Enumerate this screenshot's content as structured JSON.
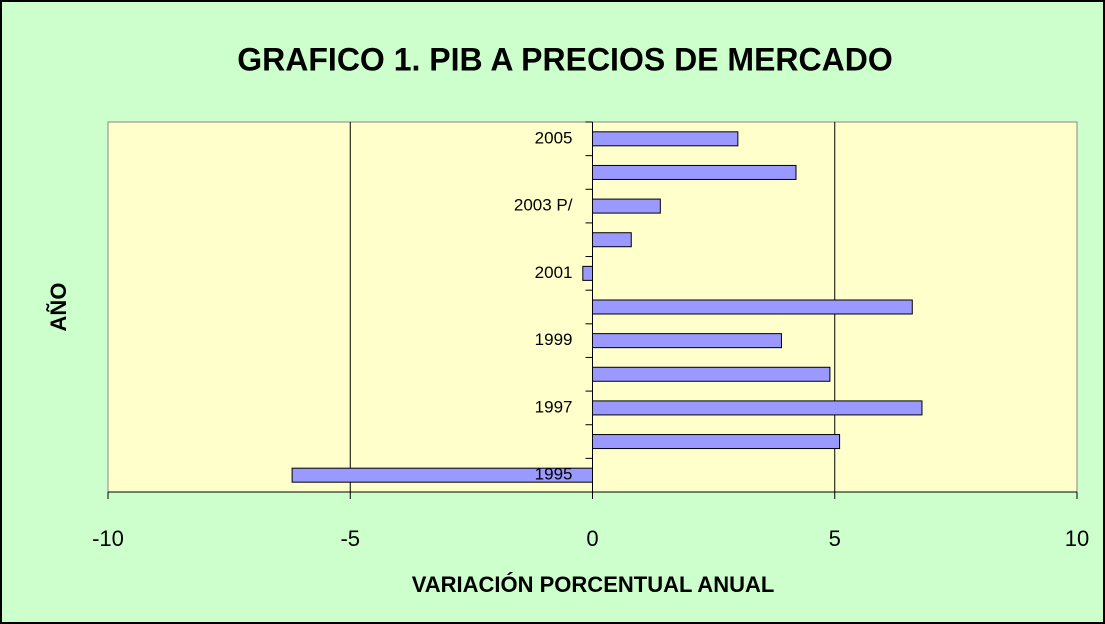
{
  "chart_data": {
    "type": "bar",
    "orientation": "horizontal",
    "title": "GRAFICO 1. PIB A PRECIOS DE MERCADO",
    "x_label": "VARIACIÓN PORCENTUAL ANUAL",
    "y_label": "AÑO",
    "categories": [
      "1995",
      null,
      "1997",
      null,
      "1999",
      null,
      "2001",
      null,
      "2003 P/",
      null,
      "2005"
    ],
    "values": [
      -6.2,
      5.1,
      6.8,
      4.9,
      3.9,
      6.6,
      -0.2,
      0.8,
      1.4,
      4.2,
      3.0
    ],
    "color": "#9999ff",
    "xlim": [
      -10,
      10
    ],
    "xticks": [
      -10,
      -5,
      0,
      5,
      10
    ],
    "grid": true
  }
}
